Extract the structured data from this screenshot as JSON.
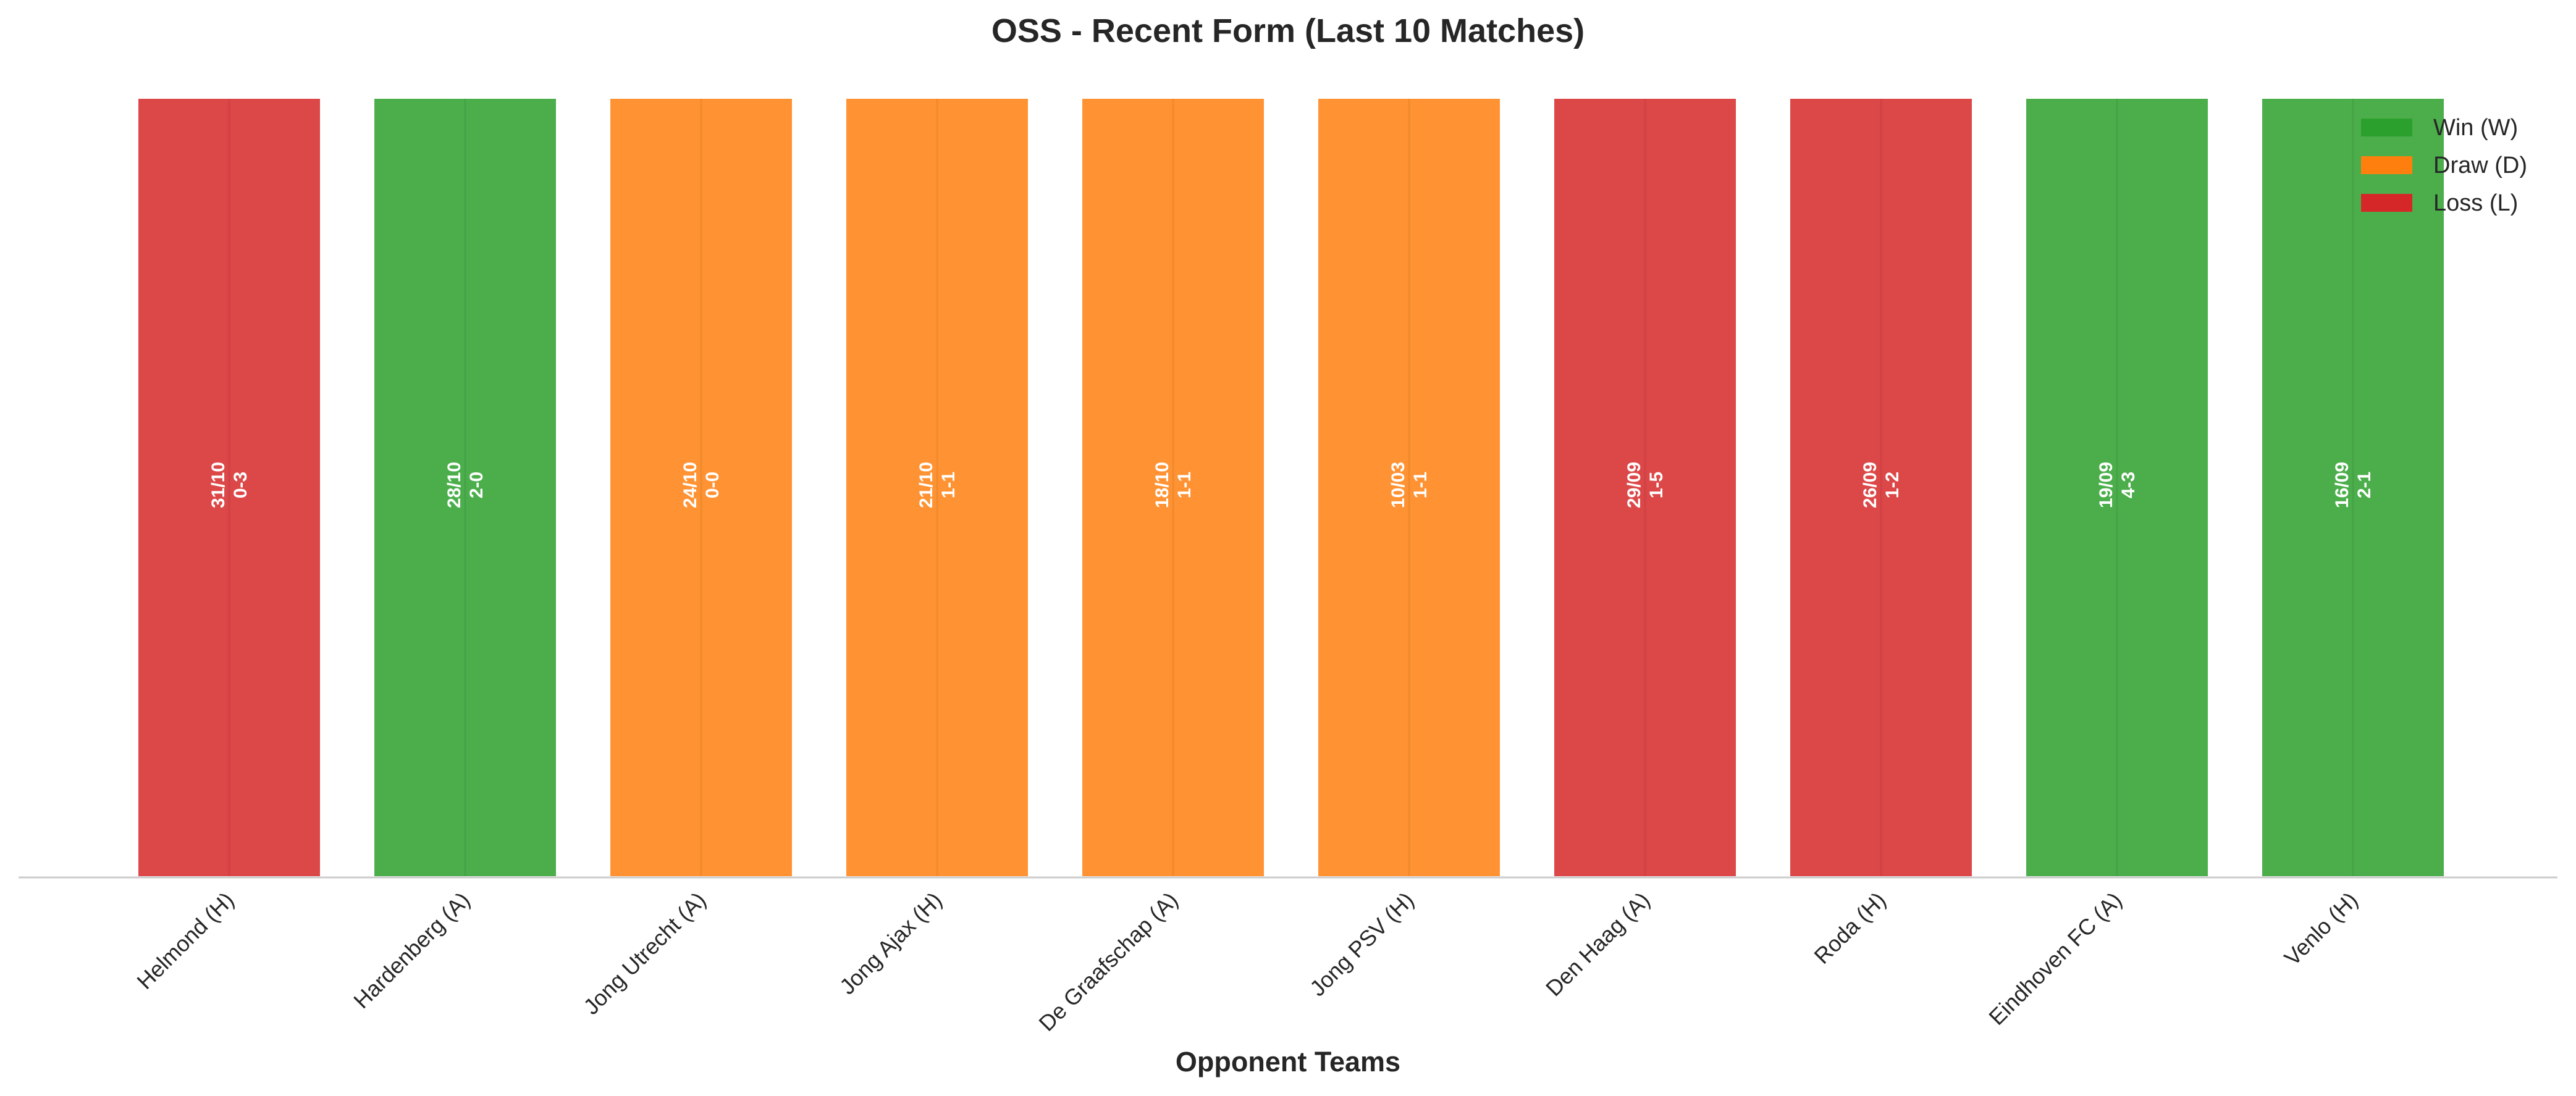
{
  "chart_data": {
    "type": "bar",
    "title": "OSS - Recent Form (Last 10 Matches)",
    "xlabel": "Opponent Teams",
    "ylabel": "",
    "categories": [
      "Helmond (H)",
      "Hardenberg (A)",
      "Jong Utrecht (A)",
      "Jong Ajax (H)",
      "De Graafschap (A)",
      "Jong PSV (H)",
      "Den Haag (A)",
      "Roda (H)",
      "Eindhoven FC (A)",
      "Venlo (H)"
    ],
    "values": [
      1,
      1,
      1,
      1,
      1,
      1,
      1,
      1,
      1,
      1
    ],
    "results": [
      "L",
      "W",
      "D",
      "D",
      "D",
      "D",
      "L",
      "L",
      "W",
      "W"
    ],
    "bar_labels": [
      {
        "date": "31/10",
        "score": "0-3"
      },
      {
        "date": "28/10",
        "score": "2-0"
      },
      {
        "date": "24/10",
        "score": "0-0"
      },
      {
        "date": "21/10",
        "score": "1-1"
      },
      {
        "date": "18/10",
        "score": "1-1"
      },
      {
        "date": "10/03",
        "score": "1-1"
      },
      {
        "date": "29/09",
        "score": "1-5"
      },
      {
        "date": "26/09",
        "score": "1-2"
      },
      {
        "date": "19/09",
        "score": "4-3"
      },
      {
        "date": "16/09",
        "score": "2-1"
      }
    ],
    "legend": {
      "position": "top-right",
      "entries": [
        {
          "key": "W",
          "label": "Win (W)",
          "color": "#2ca02c"
        },
        {
          "key": "D",
          "label": "Draw (D)",
          "color": "#ff7f0e"
        },
        {
          "key": "L",
          "label": "Loss (L)",
          "color": "#d62728"
        }
      ]
    },
    "ylim": [
      0,
      1
    ],
    "grid": false,
    "bar_opacity": 0.85
  }
}
